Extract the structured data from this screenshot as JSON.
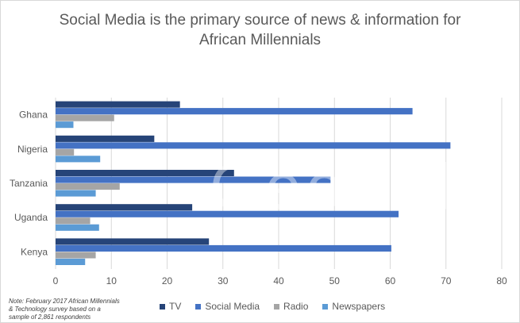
{
  "chart_data": {
    "type": "bar",
    "orientation": "horizontal",
    "title_lines": [
      "Social Media is the primary source of news & information for",
      "African Millennials"
    ],
    "categories": [
      "Ghana",
      "Nigeria",
      "Tanzania",
      "Uganda",
      "Kenya"
    ],
    "series": [
      {
        "name": "TV",
        "color": "#264478",
        "values": [
          22.3,
          17.7,
          32,
          24.5,
          27.5
        ]
      },
      {
        "name": "Social Media",
        "color": "#4472C4",
        "values": [
          64,
          70.8,
          49.3,
          61.5,
          60.2
        ]
      },
      {
        "name": "Radio",
        "color": "#A5A5A5",
        "values": [
          10.5,
          3.3,
          11.5,
          6.2,
          7.2
        ]
      },
      {
        "name": "Newspapers",
        "color": "#5B9BD5",
        "values": [
          3.2,
          8,
          7.2,
          7.8,
          5.3
        ]
      }
    ],
    "xlim": [
      0,
      80
    ],
    "xticks": [
      "0",
      "10",
      "20",
      "30",
      "40",
      "50",
      "60",
      "70",
      "80"
    ],
    "grid": true,
    "legend": "bottom",
    "watermark": "GeoPoll",
    "note": "Note: February 2017 African Millennials & Technology survey based on a sample of 2,861 respondents"
  }
}
